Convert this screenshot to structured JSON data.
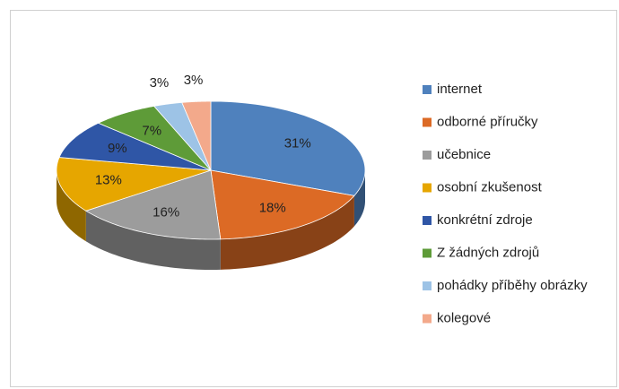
{
  "chart_data": {
    "type": "pie",
    "categories": [
      "internet",
      "odborné příručky",
      "učebnice",
      "osobní zkušenost",
      "konkrétní zdroje",
      "Z žádných zdrojů",
      "pohádky příběhy obrázky",
      "kolegové"
    ],
    "values": [
      31,
      18,
      16,
      13,
      9,
      7,
      3,
      3
    ],
    "value_labels": [
      "31%",
      "18%",
      "16%",
      "13%",
      "9%",
      "7%",
      "3%",
      "3%"
    ],
    "colors": [
      "#4f81bd",
      "#dc6a25",
      "#9c9c9c",
      "#e6a600",
      "#2f56a6",
      "#5e9b38",
      "#9dc3e6",
      "#f3a98b"
    ],
    "legend": "right"
  }
}
